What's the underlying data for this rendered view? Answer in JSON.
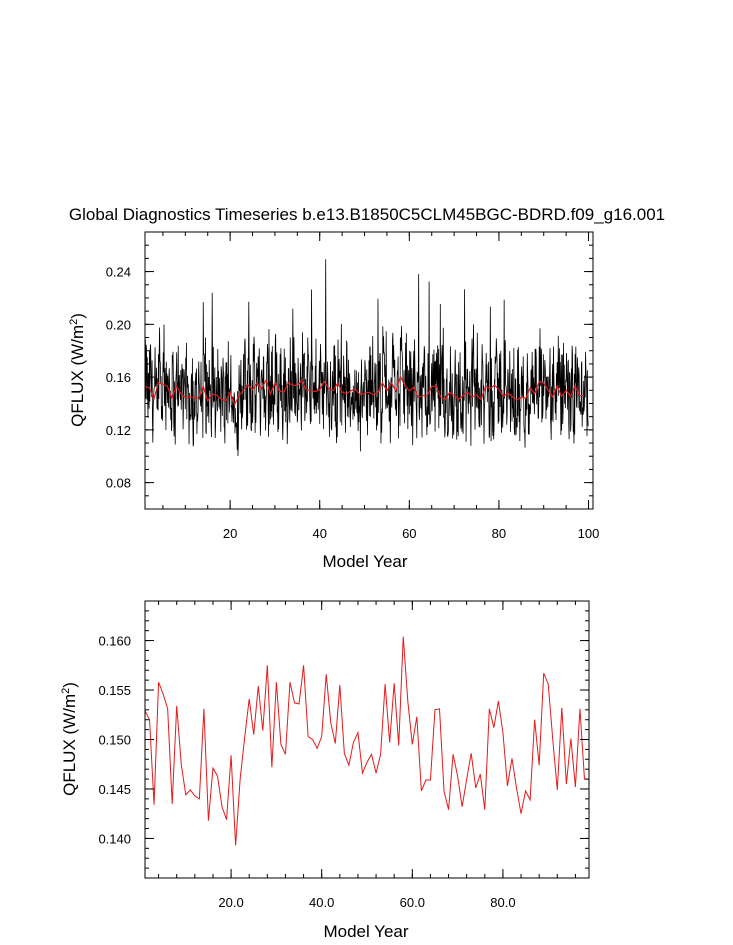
{
  "chart_data": [
    {
      "type": "line",
      "title": "Global Diagnostics Timeseries b.e13.B1850C5CLM45BGC-BDRD.f09_g16.001",
      "xlabel": "Model Year",
      "ylabel": "QFLUX (W/m",
      "ylabel_sup": "2",
      "ylabel_close": ")",
      "xlim": [
        1,
        101
      ],
      "ylim": [
        0.06,
        0.27
      ],
      "xticks": [
        20,
        40,
        60,
        80,
        100
      ],
      "xtick_labels": [
        "20",
        "40",
        "60",
        "80",
        "100"
      ],
      "yticks": [
        0.08,
        0.12,
        0.16,
        0.2,
        0.24
      ],
      "ytick_labels": [
        "0.08",
        "0.12",
        "0.16",
        "0.20",
        "0.24"
      ],
      "grid": false,
      "colors": {
        "monthly": "#000000",
        "annual": "#e41a1c"
      },
      "monthly_stats": {
        "count": 1188,
        "mean": 0.1485,
        "min": 0.086,
        "max": 0.256
      },
      "annual_x_start": 1,
      "annual": [
        0.1529,
        0.152,
        0.1434,
        0.1558,
        0.1546,
        0.1531,
        0.1435,
        0.1534,
        0.1475,
        0.1444,
        0.1449,
        0.1443,
        0.144,
        0.1531,
        0.1418,
        0.1471,
        0.1463,
        0.1432,
        0.1419,
        0.1484,
        0.1393,
        0.146,
        0.1502,
        0.1541,
        0.1505,
        0.1554,
        0.1509,
        0.1575,
        0.1472,
        0.1558,
        0.1495,
        0.1485,
        0.1558,
        0.1537,
        0.1536,
        0.1575,
        0.1503,
        0.15,
        0.1491,
        0.1503,
        0.1566,
        0.1517,
        0.1496,
        0.1555,
        0.1486,
        0.1474,
        0.1497,
        0.1507,
        0.1466,
        0.1477,
        0.1485,
        0.1466,
        0.1485,
        0.1556,
        0.1497,
        0.1557,
        0.1494,
        0.1604,
        0.1539,
        0.1495,
        0.1523,
        0.1448,
        0.1459,
        0.1459,
        0.153,
        0.1531,
        0.1448,
        0.1429,
        0.1485,
        0.1463,
        0.1432,
        0.146,
        0.1486,
        0.1451,
        0.1465,
        0.1429,
        0.1531,
        0.1512,
        0.1539,
        0.1507,
        0.1453,
        0.1481,
        0.1451,
        0.1425,
        0.1448,
        0.1439,
        0.152,
        0.1474,
        0.1567,
        0.1556,
        0.15,
        0.1449,
        0.1532,
        0.1455,
        0.1501,
        0.1452,
        0.1531,
        0.146,
        0.146
      ]
    },
    {
      "type": "line",
      "xlabel": "Model Year",
      "ylabel": "QFLUX (W/m",
      "ylabel_sup": "2",
      "ylabel_close": ")",
      "xlim": [
        1,
        99
      ],
      "ylim": [
        0.136,
        0.164
      ],
      "xticks": [
        20,
        40,
        60,
        80
      ],
      "xtick_labels": [
        "20.0",
        "40.0",
        "60.0",
        "80.0"
      ],
      "yticks": [
        0.14,
        0.145,
        0.15,
        0.155,
        0.16
      ],
      "ytick_labels": [
        "0.140",
        "0.145",
        "0.150",
        "0.155",
        "0.160"
      ],
      "grid": false,
      "colors": {
        "annual": "#e41a1c"
      }
    }
  ]
}
